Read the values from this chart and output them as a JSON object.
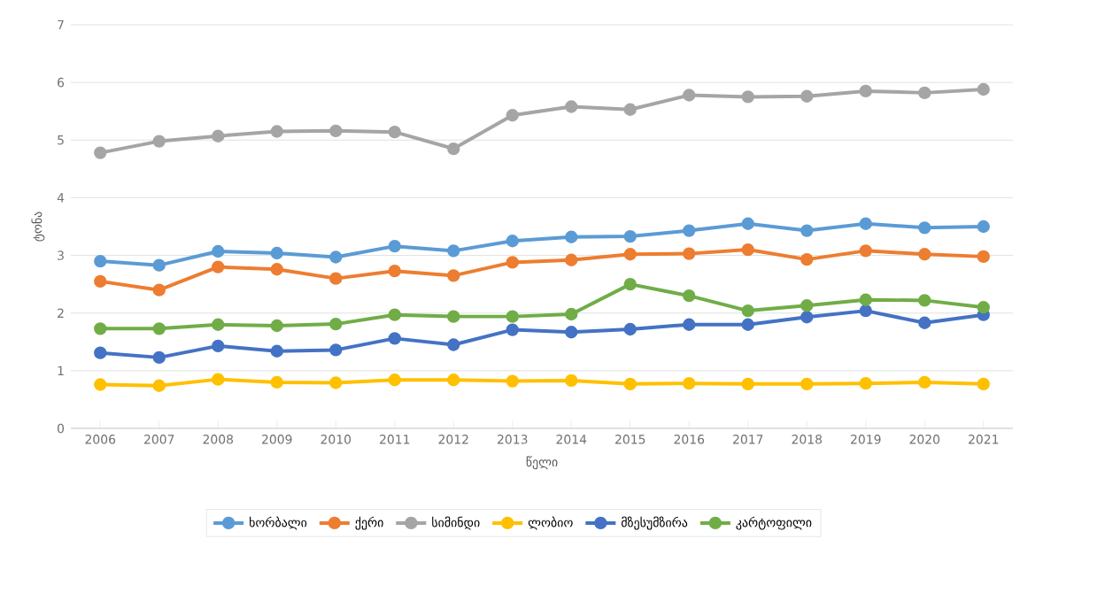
{
  "chart_data": {
    "type": "line",
    "xlabel": "წელი",
    "ylabel": "ტონა",
    "categories": [
      "2006",
      "2007",
      "2008",
      "2009",
      "2010",
      "2011",
      "2012",
      "2013",
      "2014",
      "2015",
      "2016",
      "2017",
      "2018",
      "2019",
      "2020",
      "2021"
    ],
    "ylim": [
      0,
      7
    ],
    "yticks": [
      0,
      1,
      2,
      3,
      4,
      5,
      6,
      7
    ],
    "grid": "y",
    "legend": "bottom",
    "marker": "circle",
    "line_style": "solid",
    "series": [
      {
        "name": "ხორბალი",
        "color": "#5b9bd5",
        "values": [
          2.9,
          2.83,
          3.07,
          3.04,
          2.97,
          3.16,
          3.08,
          3.25,
          3.32,
          3.33,
          3.43,
          3.55,
          3.43,
          3.55,
          3.48,
          3.5
        ]
      },
      {
        "name": "ქერი",
        "color": "#ed7d31",
        "values": [
          2.55,
          2.4,
          2.8,
          2.76,
          2.6,
          2.73,
          2.65,
          2.88,
          2.92,
          3.02,
          3.03,
          3.1,
          2.93,
          3.08,
          3.02,
          2.98
        ]
      },
      {
        "name": "სიმინდი",
        "color": "#a5a5a5",
        "values": [
          4.78,
          4.98,
          5.07,
          5.15,
          5.16,
          5.14,
          4.85,
          5.43,
          5.58,
          5.53,
          5.78,
          5.75,
          5.76,
          5.85,
          5.82,
          5.88
        ]
      },
      {
        "name": "ლობიო",
        "color": "#ffc000",
        "values": [
          0.76,
          0.74,
          0.85,
          0.8,
          0.79,
          0.84,
          0.84,
          0.82,
          0.83,
          0.77,
          0.78,
          0.77,
          0.77,
          0.78,
          0.8,
          0.77
        ]
      },
      {
        "name": "მზესუმზირა",
        "color": "#4472c4",
        "values": [
          1.31,
          1.23,
          1.43,
          1.34,
          1.36,
          1.56,
          1.45,
          1.71,
          1.67,
          1.72,
          1.8,
          1.8,
          1.93,
          2.04,
          1.83,
          1.97
        ]
      },
      {
        "name": "კარტოფილი",
        "color": "#70ad47",
        "values": [
          1.73,
          1.73,
          1.8,
          1.78,
          1.81,
          1.97,
          1.94,
          1.94,
          1.98,
          2.5,
          2.3,
          2.04,
          2.13,
          2.23,
          2.22,
          2.1
        ]
      }
    ]
  }
}
